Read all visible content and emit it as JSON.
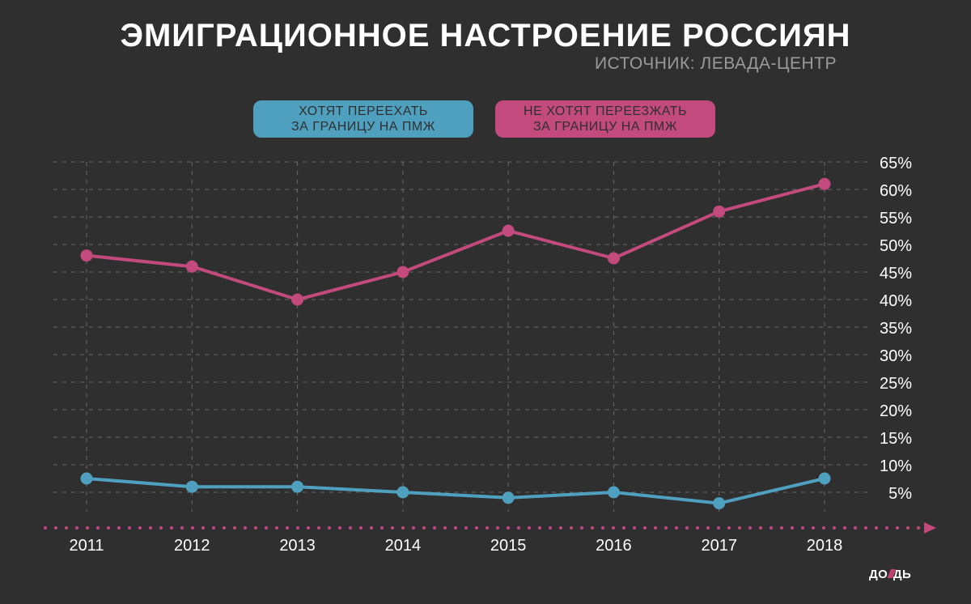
{
  "chart_data": {
    "type": "line",
    "title": "ЭМИГРАЦИОННОЕ НАСТРОЕНИЕ РОССИЯН",
    "subtitle": "ИСТОЧНИК: ЛЕВАДА-ЦЕНТР",
    "x": [
      "2011",
      "2012",
      "2013",
      "2014",
      "2015",
      "2016",
      "2017",
      "2018"
    ],
    "y_ticks": [
      "65%",
      "60%",
      "55%",
      "50%",
      "45%",
      "40%",
      "35%",
      "30%",
      "25%",
      "20%",
      "15%",
      "10%",
      "5%"
    ],
    "ylim": [
      0,
      65
    ],
    "grid": true,
    "legend_position": "top-center",
    "series": [
      {
        "name": "ХОТЯТ ПЕРЕЕХАТЬ\nЗА ГРАНИЦУ НА ПМЖ",
        "color": "#4fa0bf",
        "values": [
          7.5,
          6,
          6,
          5,
          4,
          5,
          3,
          7.5
        ]
      },
      {
        "name": "НЕ ХОТЯТ ПЕРЕЕЗЖАТЬ\nЗА ГРАНИЦУ НА ПМЖ",
        "color": "#c24a7d",
        "values": [
          48,
          46,
          40,
          45,
          52.5,
          47.5,
          56,
          61
        ]
      }
    ]
  },
  "branding": {
    "logo_left": "ДО",
    "logo_mark": "///",
    "logo_right": "ДЬ"
  },
  "colors": {
    "background": "#2f2f2f",
    "grid": "#6a6a6a",
    "axis_arrow": "#c24a7d",
    "text": "#ffffff",
    "subtitle": "#9a9a9a"
  }
}
